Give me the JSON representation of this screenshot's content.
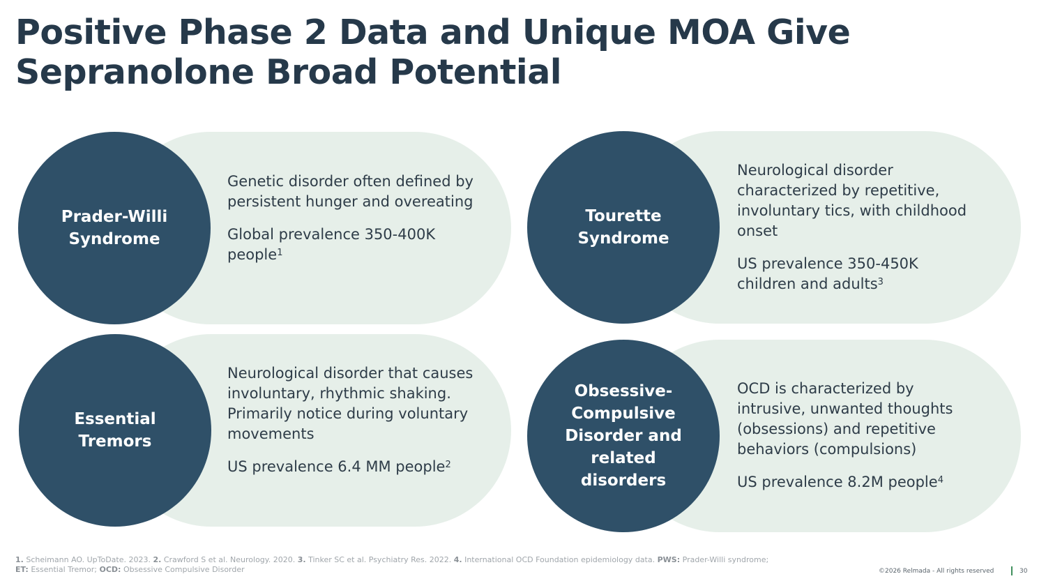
{
  "title": "Positive Phase 2 Data and Unique MOA Give Sepranolone Broad Potential",
  "cards": [
    {
      "name": "Prader-Willi\nSyndrome",
      "description": "Genetic disorder often defined by persistent hunger and overeating",
      "prevalence": "Global prevalence 350-400K people",
      "ref": "1"
    },
    {
      "name": "Tourette\nSyndrome",
      "description": "Neurological disorder characterized by repetitive, involuntary tics, with childhood onset",
      "prevalence": "US prevalence 350-450K children and adults",
      "ref": "3"
    },
    {
      "name": "Essential\nTremors",
      "description": "Neurological disorder that causes involuntary, rhythmic shaking. Primarily notice during voluntary movements",
      "prevalence": "US prevalence 6.4 MM people",
      "ref": "2"
    },
    {
      "name": "Obsessive-\nCompulsive\nDisorder and\nrelated\ndisorders",
      "description": "OCD is characterized by intrusive, unwanted thoughts (obsessions) and repetitive behaviors (compulsions)",
      "prevalence": "US prevalence 8.2M people",
      "ref": "4"
    }
  ],
  "footnote": {
    "refs": [
      {
        "num": "1.",
        "text": "Scheimann AO. UpToDate. 2023."
      },
      {
        "num": "2.",
        "text": "Crawford S et al. Neurology. 2020."
      },
      {
        "num": "3.",
        "text": "Tinker SC et al. Psychiatry Res. 2022."
      },
      {
        "num": "4.",
        "text": "International OCD Foundation epidemiology data."
      }
    ],
    "abbreviations": [
      {
        "abbr": "PWS:",
        "text": "Prader-Willi syndrome;"
      },
      {
        "abbr": "ET:",
        "text": "Essential Tremor;"
      },
      {
        "abbr": "OCD:",
        "text": "Obsessive Compulsive Disorder"
      }
    ]
  },
  "copyright": "©2026 Relmada - All rights reserved",
  "page_number": "30",
  "colors": {
    "circle": "#2f5068",
    "pill": "#e6efe9",
    "title": "#26394a",
    "accent": "#3f8f5c"
  }
}
